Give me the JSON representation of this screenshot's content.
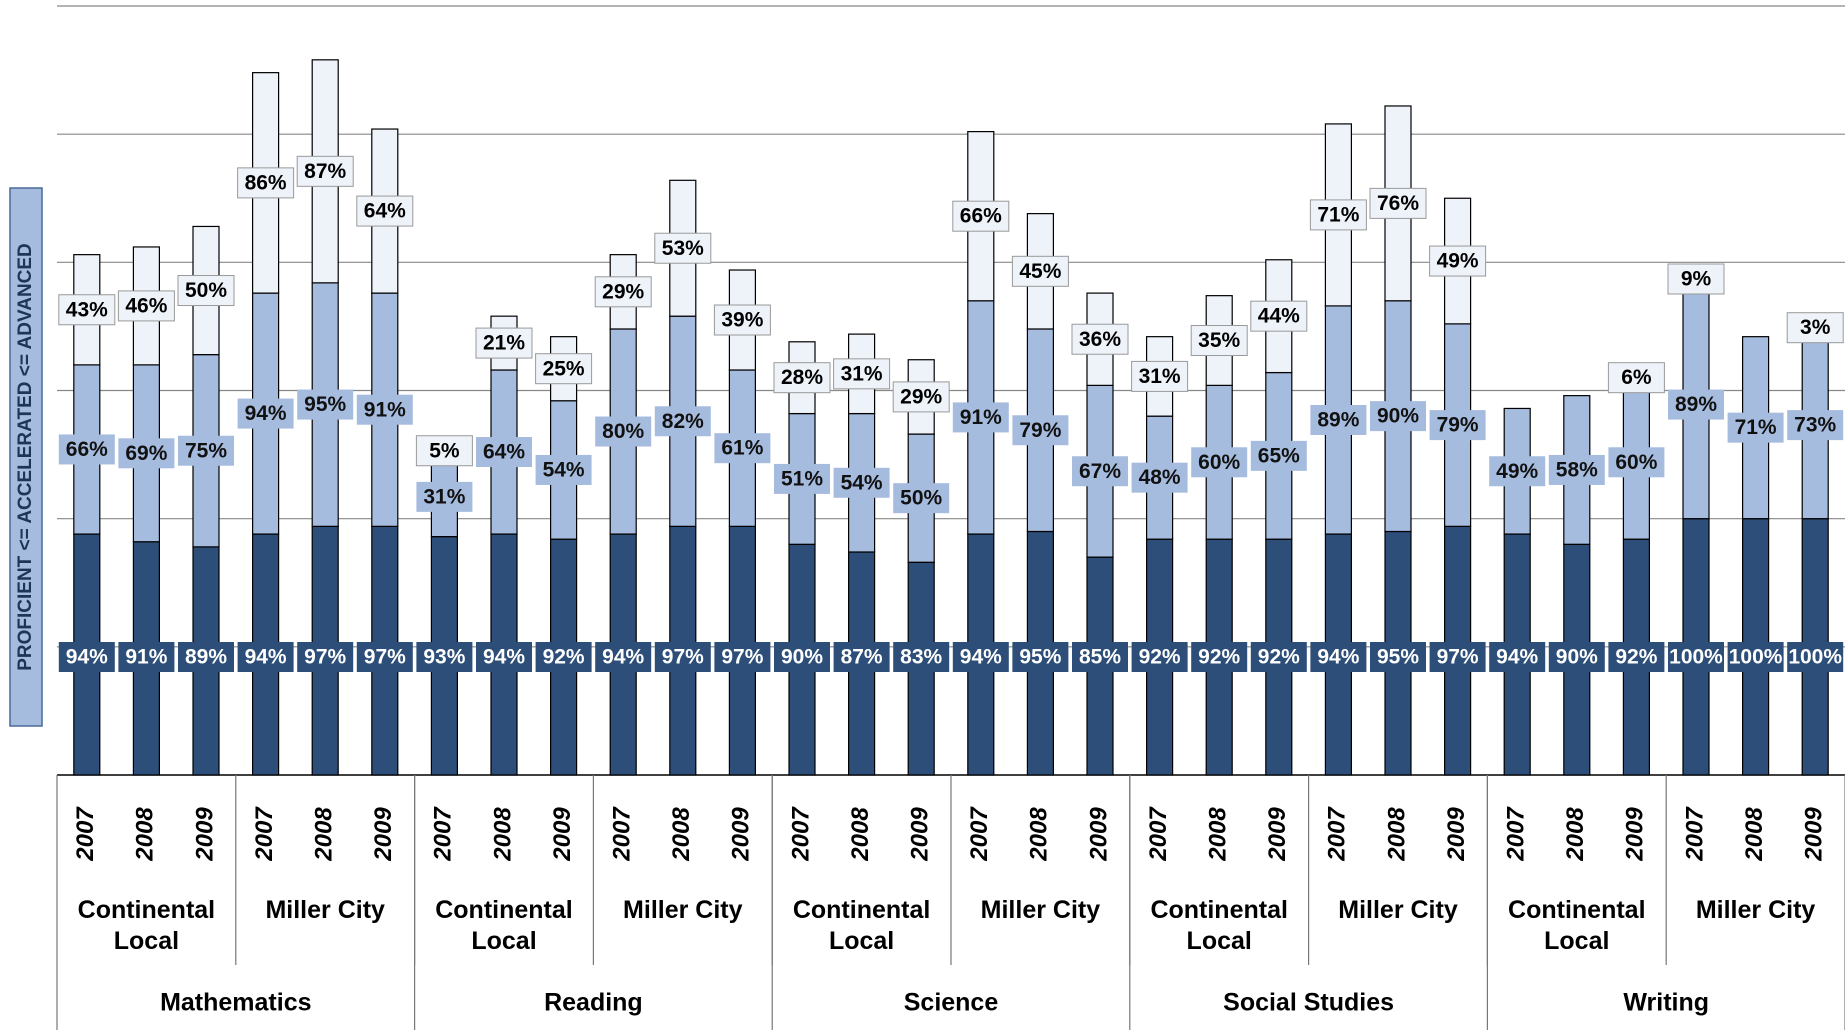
{
  "chart_data": {
    "type": "bar",
    "stacked": true,
    "ylabel": "PROFICIENT <= ACCELERATED <= ADVANCED",
    "categories": [
      "2007",
      "2008",
      "2009",
      "2007",
      "2008",
      "2009",
      "2007",
      "2008",
      "2009",
      "2007",
      "2008",
      "2009",
      "2007",
      "2008",
      "2009",
      "2007",
      "2008",
      "2009",
      "2007",
      "2008",
      "2009",
      "2007",
      "2008",
      "2009",
      "2007",
      "2008",
      "2009",
      "2007",
      "2008",
      "2009"
    ],
    "schools": [
      "Continental Local",
      "Miller City",
      "Continental Local",
      "Miller City",
      "Continental Local",
      "Miller City",
      "Continental Local",
      "Miller City",
      "Continental Local",
      "Miller City"
    ],
    "subjects": [
      "Mathematics",
      "Reading",
      "Science",
      "Social Studies",
      "Writing"
    ],
    "ylim": [
      0,
      300
    ],
    "yticks": [
      0,
      50,
      100,
      150,
      200,
      250,
      300
    ],
    "grid": true,
    "series": [
      {
        "color": "#2d4e78",
        "values": [
          94,
          91,
          89,
          94,
          97,
          97,
          93,
          94,
          92,
          94,
          97,
          97,
          90,
          87,
          83,
          94,
          95,
          85,
          92,
          92,
          92,
          94,
          95,
          97,
          94,
          90,
          92,
          100,
          100,
          100
        ],
        "value_labels": [
          "94%",
          "91%",
          "89%",
          "94%",
          "97%",
          "97%",
          "93%",
          "94%",
          "92%",
          "94%",
          "97%",
          "97%",
          "90%",
          "87%",
          "83%",
          "94%",
          "95%",
          "85%",
          "92%",
          "92%",
          "92%",
          "94%",
          "95%",
          "97%",
          "94%",
          "90%",
          "92%",
          "100%",
          "100%",
          "100%"
        ]
      },
      {
        "color": "#a6bcdf",
        "values": [
          66,
          69,
          75,
          94,
          95,
          91,
          31,
          64,
          54,
          80,
          82,
          61,
          51,
          54,
          50,
          91,
          79,
          67,
          48,
          60,
          65,
          89,
          90,
          79,
          49,
          58,
          60,
          89,
          71,
          73
        ],
        "value_labels": [
          "66%",
          "69%",
          "75%",
          "94%",
          "95%",
          "91%",
          "31%",
          "64%",
          "54%",
          "80%",
          "82%",
          "61%",
          "51%",
          "54%",
          "50%",
          "91%",
          "79%",
          "67%",
          "48%",
          "60%",
          "65%",
          "89%",
          "90%",
          "79%",
          "49%",
          "58%",
          "60%",
          "89%",
          "71%",
          "73%"
        ]
      },
      {
        "color": "#eef3fa",
        "values": [
          43,
          46,
          50,
          86,
          87,
          64,
          5,
          21,
          25,
          29,
          53,
          39,
          28,
          31,
          29,
          66,
          45,
          36,
          31,
          35,
          44,
          71,
          76,
          49,
          null,
          null,
          6,
          9,
          null,
          3
        ],
        "value_labels": [
          "43%",
          "46%",
          "50%",
          "86%",
          "87%",
          "64%",
          "5%",
          "21%",
          "25%",
          "29%",
          "53%",
          "39%",
          "28%",
          "31%",
          "29%",
          "66%",
          "45%",
          "36%",
          "31%",
          "35%",
          "44%",
          "71%",
          "76%",
          "49%",
          null,
          null,
          "6%",
          "9%",
          null,
          "3%"
        ]
      }
    ]
  }
}
